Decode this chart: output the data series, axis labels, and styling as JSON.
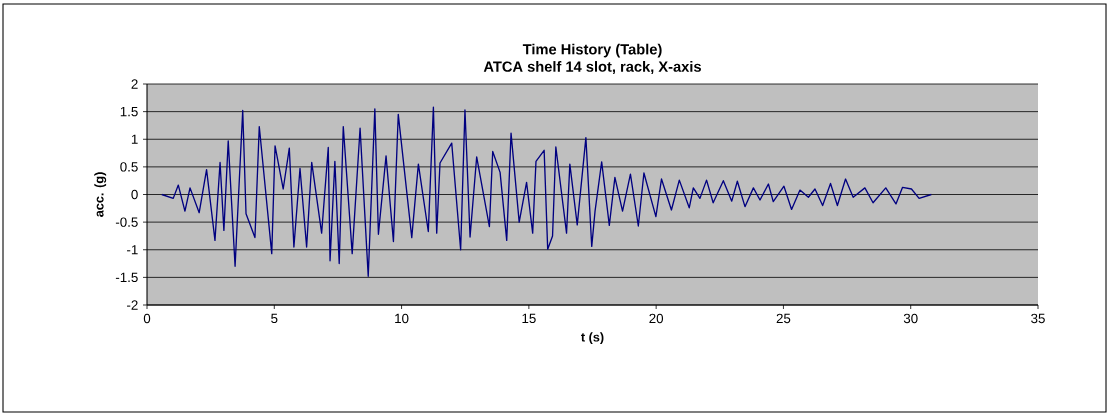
{
  "chart_data": {
    "type": "line",
    "title": "Time History (Table)",
    "subtitle": "ATCA shelf 14 slot, rack, X-axis",
    "xlabel": "t (s)",
    "ylabel": "acc. (g)",
    "xlim": [
      0,
      35
    ],
    "xticks": [
      0,
      5,
      10,
      15,
      20,
      25,
      30,
      35
    ],
    "ylim": [
      -2,
      2
    ],
    "yticks": [
      -2,
      -1.5,
      -1,
      -0.5,
      0,
      0.5,
      1,
      1.5,
      2
    ],
    "grid": "y",
    "marker": "none",
    "line_style": "solid",
    "series": [
      {
        "color": "#000080",
        "x": [
          0.58,
          1.03,
          1.23,
          1.49,
          1.69,
          2.05,
          2.34,
          2.67,
          2.87,
          3.02,
          3.19,
          3.46,
          3.76,
          3.89,
          4.24,
          4.41,
          4.9,
          5.03,
          5.35,
          5.59,
          5.77,
          6.01,
          6.27,
          6.47,
          6.86,
          7.12,
          7.19,
          7.38,
          7.55,
          7.71,
          8.06,
          8.37,
          8.69,
          8.95,
          9.09,
          9.39,
          9.68,
          9.87,
          10.4,
          10.66,
          11.05,
          11.25,
          11.38,
          11.51,
          11.97,
          12.32,
          12.49,
          12.69,
          12.95,
          13.45,
          13.58,
          13.87,
          14.13,
          14.3,
          14.62,
          14.91,
          15.15,
          15.28,
          15.6,
          15.74,
          15.93,
          16.06,
          16.48,
          16.61,
          16.9,
          17.24,
          17.47,
          17.6,
          17.86,
          18.16,
          18.38,
          18.68,
          18.99,
          19.3,
          19.52,
          19.99,
          20.21,
          20.6,
          20.91,
          21.3,
          21.46,
          21.72,
          21.98,
          22.24,
          22.64,
          22.97,
          23.19,
          23.49,
          23.82,
          24.08,
          24.41,
          24.6,
          25.02,
          25.32,
          25.65,
          25.98,
          26.24,
          26.54,
          26.85,
          27.12,
          27.44,
          27.74,
          28.2,
          28.52,
          29.02,
          29.42,
          29.68,
          30.03,
          30.33,
          30.81
        ],
        "values": [
          0,
          -0.07,
          0.17,
          -0.3,
          0.12,
          -0.33,
          0.45,
          -0.83,
          0.58,
          -0.65,
          0.97,
          -1.3,
          1.52,
          -0.35,
          -0.78,
          1.23,
          -1.07,
          0.88,
          0.1,
          0.84,
          -0.95,
          0.47,
          -0.95,
          0.58,
          -0.7,
          0.85,
          -1.2,
          0.6,
          -1.25,
          1.23,
          -1.07,
          1.2,
          -1.48,
          1.55,
          -0.72,
          0.7,
          -0.85,
          1.45,
          -0.78,
          0.55,
          -0.67,
          1.58,
          -0.7,
          0.57,
          0.93,
          -1.0,
          1.53,
          -0.77,
          0.68,
          -0.58,
          0.78,
          0.4,
          -0.83,
          1.11,
          -0.5,
          0.22,
          -0.7,
          0.6,
          0.8,
          -0.99,
          -0.75,
          0.86,
          -0.7,
          0.55,
          -0.55,
          1.03,
          -0.94,
          -0.3,
          0.59,
          -0.56,
          0.31,
          -0.3,
          0.37,
          -0.57,
          0.39,
          -0.4,
          0.28,
          -0.28,
          0.26,
          -0.24,
          0.12,
          -0.07,
          0.26,
          -0.15,
          0.25,
          -0.12,
          0.24,
          -0.22,
          0.12,
          -0.1,
          0.19,
          -0.13,
          0.15,
          -0.27,
          0.08,
          -0.05,
          0.1,
          -0.2,
          0.2,
          -0.2,
          0.28,
          -0.05,
          0.12,
          -0.15,
          0.12,
          -0.17,
          0.13,
          0.1,
          -0.07,
          0.0
        ]
      }
    ]
  }
}
